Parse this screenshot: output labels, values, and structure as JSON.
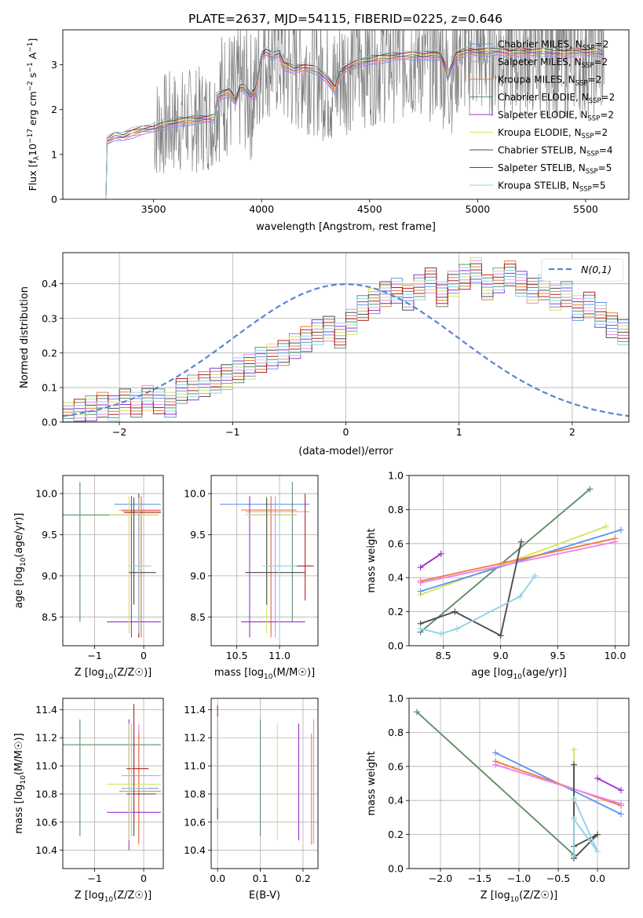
{
  "figure": {
    "title": "PLATE=2637, MJD=54115, FIBERID=0225, z=0.646"
  },
  "models": [
    {
      "name": "Chabrier MILES",
      "n": "2",
      "color": "#6495ed"
    },
    {
      "name": "Salpeter MILES",
      "n": "2",
      "color": "#ee82ee"
    },
    {
      "name": "Kroupa MILES",
      "n": "2",
      "color": "#ee7d3b"
    },
    {
      "name": "Chabrier ELODIE",
      "n": "2",
      "color": "#5f8f6a"
    },
    {
      "name": "Salpeter ELODIE",
      "n": "2",
      "color": "#9932cc"
    },
    {
      "name": "Kroupa ELODIE",
      "n": "2",
      "color": "#d4e65a"
    },
    {
      "name": "Chabrier STELIB",
      "n": "4",
      "color": "#4d4d4d"
    },
    {
      "name": "Salpeter STELIB",
      "n": "5",
      "color": "#b22222"
    },
    {
      "name": "Kroupa STELIB",
      "n": "5",
      "color": "#8fd3e6"
    }
  ],
  "legend_suffix": "N",
  "legend_sub": "SSP",
  "chart_data": [
    {
      "id": "spectrum",
      "type": "line",
      "xlabel": "wavelength [Angstrom, rest frame]",
      "ylabel": "Flux [f",
      "ylabel_full": "Flux [fλ10⁻¹⁷ erg cm⁻² s⁻¹ A⁻¹]",
      "xlim": [
        3080,
        5700
      ],
      "ylim": [
        0,
        3.78
      ],
      "xticks": [
        3500,
        4000,
        4500,
        5000,
        5500
      ],
      "yticks": [
        0,
        1,
        2,
        3
      ],
      "grid": false,
      "legend": "right",
      "data_color": "#808080",
      "model_x": [
        3200,
        3280,
        3285,
        3320,
        3360,
        3400,
        3450,
        3500,
        3550,
        3600,
        3650,
        3700,
        3750,
        3780,
        3800,
        3850,
        3880,
        3900,
        3920,
        3950,
        3970,
        4000,
        4020,
        4050,
        4080,
        4100,
        4150,
        4200,
        4250,
        4300,
        4340,
        4360,
        4400,
        4450,
        4500,
        4550,
        4600,
        4650,
        4700,
        4750,
        4800,
        4830,
        4850,
        4861,
        4880,
        4900,
        4950,
        5000,
        5050,
        5100,
        5150,
        5200,
        5250,
        5300,
        5350,
        5400,
        5450,
        5500,
        5550,
        5580
      ],
      "model_y": [
        0,
        0,
        1.3,
        1.42,
        1.4,
        1.48,
        1.55,
        1.58,
        1.66,
        1.72,
        1.76,
        1.78,
        1.8,
        1.82,
        2.3,
        2.4,
        2.2,
        2.5,
        2.5,
        2.3,
        2.4,
        3.2,
        3.3,
        3.2,
        3.28,
        3.0,
        2.9,
        2.95,
        2.9,
        2.7,
        2.45,
        2.8,
        2.95,
        3.05,
        3.1,
        3.15,
        3.18,
        3.2,
        3.22,
        3.2,
        3.22,
        3.2,
        2.95,
        2.75,
        2.95,
        3.2,
        3.3,
        3.28,
        3.3,
        3.32,
        3.25,
        3.3,
        3.28,
        3.3,
        3.28,
        3.25,
        3.3,
        3.28,
        3.3,
        3.25
      ]
    },
    {
      "id": "residuals",
      "type": "histogram",
      "xlabel": "(data-model)/error",
      "ylabel": "Normed distribution",
      "xlim": [
        -2.5,
        2.5
      ],
      "ylim": [
        0,
        0.49
      ],
      "xticks": [
        -2,
        -1,
        0,
        1,
        2
      ],
      "yticks": [
        0.0,
        0.1,
        0.2,
        0.3,
        0.4
      ],
      "grid": true,
      "legend": "top-right",
      "curve_label": "N(0,1)",
      "curve_color": "#5b84d6",
      "bin_width": 0.1,
      "bin_start": -2.5,
      "base_values": [
        0.02,
        0.03,
        0.04,
        0.05,
        0.04,
        0.06,
        0.05,
        0.07,
        0.06,
        0.05,
        0.09,
        0.1,
        0.11,
        0.12,
        0.13,
        0.15,
        0.16,
        0.18,
        0.19,
        0.2,
        0.22,
        0.24,
        0.26,
        0.27,
        0.25,
        0.29,
        0.33,
        0.35,
        0.37,
        0.38,
        0.36,
        0.39,
        0.41,
        0.37,
        0.4,
        0.42,
        0.44,
        0.39,
        0.41,
        0.43,
        0.4,
        0.38,
        0.39,
        0.36,
        0.37,
        0.33,
        0.34,
        0.31,
        0.28,
        0.26,
        0.25,
        0.22,
        0.2,
        0.17,
        0.16,
        0.14,
        0.12,
        0.1,
        0.1,
        0.08,
        0.09,
        0.07,
        0.06,
        0.07,
        0.05,
        0.05,
        0.04,
        0.03,
        0.03,
        0.02
      ]
    },
    {
      "id": "age_vs_Z",
      "type": "errorbar",
      "xlabel": "Z [log10(Z/Z☉)]",
      "ylabel": "age  [log10(age/yr)]",
      "xlim": [
        -1.65,
        0.4
      ],
      "ylim": [
        8.15,
        10.22
      ],
      "xticks": [
        -1,
        0
      ],
      "yticks": [
        8.5,
        9.0,
        9.5,
        10.0
      ],
      "grid": true,
      "points": [
        {
          "c": 3,
          "x": -1.3,
          "y": 9.74,
          "xe": [
            -1.65,
            0.3
          ],
          "ye": [
            8.44,
            10.14
          ]
        },
        {
          "c": 0,
          "x": -0.05,
          "y": 9.87,
          "xe": [
            -0.6,
            0.35
          ],
          "ye": [
            8.3,
            9.97
          ]
        },
        {
          "c": 1,
          "x": -0.1,
          "y": 9.8,
          "xe": [
            -0.5,
            0.35
          ],
          "ye": [
            8.25,
            9.97
          ]
        },
        {
          "c": 2,
          "x": -0.05,
          "y": 9.79,
          "xe": [
            -0.45,
            0.35
          ],
          "ye": [
            8.25,
            9.95
          ]
        },
        {
          "c": 4,
          "x": -0.25,
          "y": 8.44,
          "xe": [
            -0.75,
            0.35
          ],
          "ye": [
            8.25,
            9.97
          ]
        },
        {
          "c": 5,
          "x": -0.3,
          "y": 9.74,
          "xe": [
            -0.7,
            0.3
          ],
          "ye": [
            8.3,
            9.97
          ]
        },
        {
          "c": 6,
          "x": -0.2,
          "y": 9.04,
          "xe": [
            -0.3,
            0.25
          ],
          "ye": [
            8.65,
            9.95
          ]
        },
        {
          "c": 7,
          "x": -0.1,
          "y": 9.77,
          "xe": [
            -0.4,
            0.35
          ],
          "ye": [
            8.25,
            10.0
          ]
        },
        {
          "c": 8,
          "x": -0.1,
          "y": 9.12,
          "xe": [
            -0.3,
            0.15
          ],
          "ye": [
            8.3,
            9.95
          ]
        }
      ]
    },
    {
      "id": "age_vs_mass",
      "type": "errorbar",
      "xlabel": "mass [log10(M/M☉)]",
      "ylabel": "",
      "xlim": [
        10.2,
        11.45
      ],
      "ylim": [
        8.15,
        10.22
      ],
      "xticks": [
        10.5,
        11.0
      ],
      "yticks": [
        8.5,
        9.0,
        9.5,
        10.0
      ],
      "grid": true,
      "points": [
        {
          "c": 0,
          "x": 10.9,
          "y": 9.87,
          "xe": [
            10.3,
            11.35
          ],
          "ye": [
            8.3,
            9.97
          ]
        },
        {
          "c": 1,
          "x": 10.95,
          "y": 9.78,
          "xe": [
            10.6,
            11.35
          ],
          "ye": [
            8.25,
            9.97
          ]
        },
        {
          "c": 2,
          "x": 10.9,
          "y": 9.8,
          "xe": [
            10.55,
            11.2
          ],
          "ye": [
            8.25,
            9.95
          ]
        },
        {
          "c": 3,
          "x": 11.15,
          "y": 9.74,
          "xe": [
            10.65,
            11.2
          ],
          "ye": [
            8.44,
            10.14
          ]
        },
        {
          "c": 4,
          "x": 10.65,
          "y": 8.44,
          "xe": [
            10.55,
            11.3
          ],
          "ye": [
            8.25,
            9.97
          ]
        },
        {
          "c": 5,
          "x": 10.85,
          "y": 9.74,
          "xe": [
            10.6,
            11.2
          ],
          "ye": [
            8.3,
            9.97
          ]
        },
        {
          "c": 6,
          "x": 10.85,
          "y": 9.04,
          "xe": [
            10.6,
            11.3
          ],
          "ye": [
            8.65,
            9.95
          ]
        },
        {
          "c": 7,
          "x": 11.3,
          "y": 9.12,
          "xe": [
            11.2,
            11.4
          ],
          "ye": [
            8.7,
            10.0
          ]
        },
        {
          "c": 8,
          "x": 11.0,
          "y": 9.12,
          "xe": [
            10.8,
            11.2
          ],
          "ye": [
            8.3,
            9.95
          ]
        }
      ]
    },
    {
      "id": "mw_vs_age",
      "type": "line",
      "xlabel": "age  [log10(age/yr)]",
      "ylabel": "mass weight",
      "xlim": [
        8.2,
        10.12
      ],
      "ylim": [
        0,
        1.0
      ],
      "xticks": [
        8.5,
        9.0,
        9.5,
        10.0
      ],
      "yticks": [
        0.0,
        0.2,
        0.4,
        0.6,
        0.8,
        1.0
      ],
      "grid": true,
      "series": [
        {
          "c": 3,
          "x": [
            8.3,
            9.78
          ],
          "y": [
            0.08,
            0.92
          ]
        },
        {
          "c": 5,
          "x": [
            8.3,
            9.92
          ],
          "y": [
            0.3,
            0.7
          ]
        },
        {
          "c": 0,
          "x": [
            8.3,
            10.05
          ],
          "y": [
            0.32,
            0.68
          ]
        },
        {
          "c": 2,
          "x": [
            8.3,
            10.0
          ],
          "y": [
            0.38,
            0.63
          ]
        },
        {
          "c": 1,
          "x": [
            8.3,
            10.0
          ],
          "y": [
            0.37,
            0.61
          ]
        },
        {
          "c": 4,
          "x": [
            8.3,
            8.48
          ],
          "y": [
            0.46,
            0.54
          ]
        },
        {
          "c": 6,
          "x": [
            8.3,
            8.6,
            9.0,
            9.18
          ],
          "y": [
            0.13,
            0.2,
            0.06,
            0.61
          ]
        },
        {
          "c": 8,
          "x": [
            8.3,
            8.48,
            8.62,
            9.17,
            9.3
          ],
          "y": [
            0.1,
            0.07,
            0.1,
            0.29,
            0.41
          ]
        }
      ]
    },
    {
      "id": "mass_vs_Z",
      "type": "errorbar",
      "xlabel": "Z [log10(Z/Z☉)]",
      "ylabel": "mass [log10(M/M☉)]",
      "xlim": [
        -1.65,
        0.4
      ],
      "ylim": [
        10.27,
        11.48
      ],
      "xticks": [
        -1,
        0
      ],
      "yticks": [
        10.4,
        10.6,
        10.8,
        11.0,
        11.2,
        11.4
      ],
      "grid": true,
      "points": [
        {
          "c": 3,
          "x": -1.3,
          "y": 11.15,
          "xe": [
            -1.65,
            0.35
          ],
          "ye": [
            10.5,
            11.33
          ]
        },
        {
          "c": 0,
          "x": -0.1,
          "y": 10.84,
          "xe": [
            -0.45,
            0.3
          ],
          "ye": [
            10.5,
            11.25
          ]
        },
        {
          "c": 1,
          "x": -0.1,
          "y": 10.93,
          "xe": [
            -0.45,
            0.35
          ],
          "ye": [
            10.45,
            11.3
          ]
        },
        {
          "c": 2,
          "x": -0.1,
          "y": 10.82,
          "xe": [
            -0.5,
            0.35
          ],
          "ye": [
            10.44,
            11.23
          ]
        },
        {
          "c": 4,
          "x": -0.3,
          "y": 10.67,
          "xe": [
            -0.75,
            0.35
          ],
          "ye": [
            10.4,
            11.33
          ]
        },
        {
          "c": 5,
          "x": -0.3,
          "y": 10.87,
          "xe": [
            -0.75,
            0.35
          ],
          "ye": [
            10.47,
            11.3
          ]
        },
        {
          "c": 6,
          "x": -0.2,
          "y": 10.8,
          "xe": [
            -0.35,
            0.25
          ],
          "ye": [
            10.5,
            11.2
          ]
        },
        {
          "c": 7,
          "x": -0.2,
          "y": 10.98,
          "xe": [
            -0.35,
            0.1
          ],
          "ye": [
            10.6,
            11.44
          ]
        },
        {
          "c": 8,
          "x": -0.25,
          "y": 10.84,
          "xe": [
            -0.4,
            0.1
          ],
          "ye": [
            10.5,
            11.3
          ]
        }
      ]
    },
    {
      "id": "mass_vs_EBV",
      "type": "errorbar",
      "xlabel": "E(B-V)",
      "ylabel": "",
      "xlim": [
        -0.015,
        0.235
      ],
      "ylim": [
        10.27,
        11.48
      ],
      "xticks": [
        0.0,
        0.1,
        0.2
      ],
      "yticks": [
        10.4,
        10.6,
        10.8,
        11.0,
        11.2,
        11.4
      ],
      "grid": true,
      "points": [
        {
          "c": 0,
          "x": 0.0,
          "ye": [
            10.7,
            11.3
          ]
        },
        {
          "c": 1,
          "x": 0.225,
          "ye": [
            10.45,
            11.33
          ]
        },
        {
          "c": 2,
          "x": 0.22,
          "ye": [
            10.44,
            11.23
          ]
        },
        {
          "c": 3,
          "x": 0.1,
          "ye": [
            10.5,
            11.33
          ]
        },
        {
          "c": 4,
          "x": 0.19,
          "ye": [
            10.47,
            11.3
          ]
        },
        {
          "c": 5,
          "x": 0.14,
          "ye": [
            10.47,
            11.3
          ]
        },
        {
          "c": 6,
          "x": 0.0,
          "ye": [
            10.62,
            11.2
          ]
        },
        {
          "c": 7,
          "x": 0.0,
          "ye": [
            10.7,
            11.43
          ]
        },
        {
          "c": 8,
          "x": 0.0,
          "ye": [
            10.7,
            11.35
          ]
        }
      ]
    },
    {
      "id": "mw_vs_Z",
      "type": "line",
      "xlabel": "Z [log10(Z/Z☉)]",
      "ylabel": "mass weight",
      "xlim": [
        -2.4,
        0.4
      ],
      "ylim": [
        0,
        1.0
      ],
      "xticks": [
        -2.0,
        -1.5,
        -1.0,
        -0.5,
        0.0
      ],
      "yticks": [
        0.0,
        0.2,
        0.4,
        0.6,
        0.8,
        1.0
      ],
      "grid": true,
      "series": [
        {
          "c": 3,
          "x": [
            -2.3,
            -0.3
          ],
          "y": [
            0.92,
            0.08
          ]
        },
        {
          "c": 0,
          "x": [
            -1.3,
            0.3
          ],
          "y": [
            0.68,
            0.32
          ]
        },
        {
          "c": 2,
          "x": [
            -1.3,
            0.3
          ],
          "y": [
            0.63,
            0.37
          ]
        },
        {
          "c": 1,
          "x": [
            -1.3,
            0.3
          ],
          "y": [
            0.61,
            0.38
          ]
        },
        {
          "c": 4,
          "x": [
            0.0,
            0.3
          ],
          "y": [
            0.53,
            0.46
          ]
        },
        {
          "c": 5,
          "x": [
            -0.3,
            -0.3
          ],
          "y": [
            0.7,
            0.3
          ]
        },
        {
          "c": 6,
          "x": [
            -0.3,
            -0.3,
            0.0,
            -0.3
          ],
          "y": [
            0.61,
            0.06,
            0.2,
            0.13
          ]
        },
        {
          "c": 8,
          "x": [
            -0.3,
            0.0,
            -0.3,
            -0.3
          ],
          "y": [
            0.41,
            0.1,
            0.29,
            0.07
          ]
        }
      ]
    }
  ]
}
